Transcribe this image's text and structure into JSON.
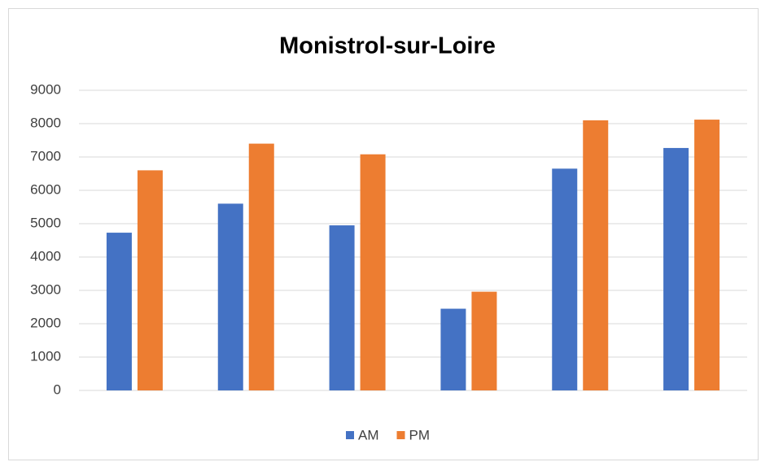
{
  "chart_data": {
    "type": "bar",
    "title": "Monistrol-sur-Loire",
    "categories": [
      null,
      null,
      null,
      null,
      null,
      null
    ],
    "series": [
      {
        "name": "AM",
        "color": "#4472c4",
        "values": [
          4730,
          5600,
          4950,
          2450,
          6650,
          7270
        ]
      },
      {
        "name": "PM",
        "color": "#ed7d31",
        "values": [
          6600,
          7400,
          7080,
          2960,
          8100,
          8120
        ]
      }
    ],
    "ylim": [
      0,
      9000
    ],
    "yticks": [
      0,
      1000,
      2000,
      3000,
      4000,
      5000,
      6000,
      7000,
      8000,
      9000
    ],
    "grid": true,
    "legend": "bottom"
  }
}
